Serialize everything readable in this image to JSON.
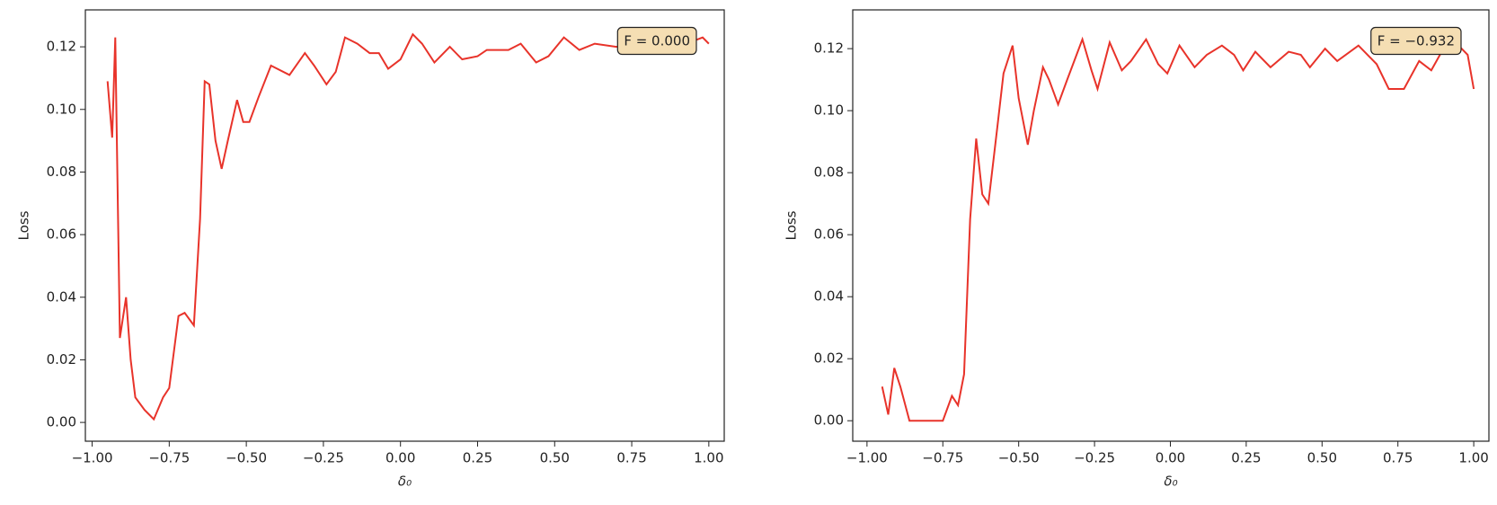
{
  "chart_data": [
    {
      "type": "line",
      "xlabel": "δ₀",
      "ylabel": "Loss",
      "annotation": "F = 0.000",
      "annotation_color": "#f5deb3",
      "xlim": [
        -1.022,
        1.05
      ],
      "ylim": [
        -0.006,
        0.1318
      ],
      "xticks": [
        {
          "value": -1,
          "label": "−1.00"
        },
        {
          "value": -0.75,
          "label": "−0.75"
        },
        {
          "value": -0.5,
          "label": "−0.50"
        },
        {
          "value": -0.25,
          "label": "−0.25"
        },
        {
          "value": 0,
          "label": "0.00"
        },
        {
          "value": 0.25,
          "label": "0.25"
        },
        {
          "value": 0.5,
          "label": "0.50"
        },
        {
          "value": 0.75,
          "label": "0.75"
        },
        {
          "value": 1,
          "label": "1.00"
        }
      ],
      "yticks": [
        {
          "value": 0,
          "label": "0.00"
        },
        {
          "value": 0.02,
          "label": "0.02"
        },
        {
          "value": 0.04,
          "label": "0.04"
        },
        {
          "value": 0.06,
          "label": "0.06"
        },
        {
          "value": 0.08,
          "label": "0.08"
        },
        {
          "value": 0.1,
          "label": "0.10"
        },
        {
          "value": 0.12,
          "label": "0.12"
        }
      ],
      "color": "#e8332a",
      "x": [
        -0.95,
        -0.935,
        -0.925,
        -0.91,
        -0.89,
        -0.875,
        -0.86,
        -0.83,
        -0.8,
        -0.77,
        -0.75,
        -0.72,
        -0.7,
        -0.67,
        -0.65,
        -0.635,
        -0.62,
        -0.6,
        -0.58,
        -0.56,
        -0.53,
        -0.51,
        -0.49,
        -0.46,
        -0.42,
        -0.36,
        -0.31,
        -0.28,
        -0.24,
        -0.21,
        -0.18,
        -0.14,
        -0.1,
        -0.07,
        -0.04,
        0.0,
        0.04,
        0.07,
        0.11,
        0.16,
        0.2,
        0.25,
        0.28,
        0.35,
        0.39,
        0.44,
        0.48,
        0.53,
        0.58,
        0.63,
        0.7,
        0.8,
        0.9,
        0.98,
        1.0
      ],
      "values": [
        0.109,
        0.091,
        0.123,
        0.027,
        0.04,
        0.02,
        0.008,
        0.004,
        0.001,
        0.008,
        0.011,
        0.034,
        0.035,
        0.031,
        0.065,
        0.109,
        0.108,
        0.09,
        0.081,
        0.09,
        0.103,
        0.096,
        0.096,
        0.104,
        0.114,
        0.111,
        0.118,
        0.114,
        0.108,
        0.112,
        0.123,
        0.121,
        0.118,
        0.118,
        0.113,
        0.116,
        0.124,
        0.121,
        0.115,
        0.12,
        0.116,
        0.117,
        0.119,
        0.119,
        0.121,
        0.115,
        0.117,
        0.123,
        0.119,
        0.121,
        0.12,
        0.121,
        0.12,
        0.123,
        0.121
      ]
    },
    {
      "type": "line",
      "xlabel": "δ₀",
      "ylabel": "Loss",
      "annotation": "F = −0.932",
      "annotation_color": "#f5deb3",
      "xlim": [
        -1.047,
        1.05
      ],
      "ylim": [
        -0.0066,
        0.1325
      ],
      "xticks": [
        {
          "value": -1,
          "label": "−1.00"
        },
        {
          "value": -0.75,
          "label": "−0.75"
        },
        {
          "value": -0.5,
          "label": "−0.50"
        },
        {
          "value": -0.25,
          "label": "−0.25"
        },
        {
          "value": 0,
          "label": "0.00"
        },
        {
          "value": 0.25,
          "label": "0.25"
        },
        {
          "value": 0.5,
          "label": "0.50"
        },
        {
          "value": 0.75,
          "label": "0.75"
        },
        {
          "value": 1,
          "label": "1.00"
        }
      ],
      "yticks": [
        {
          "value": 0,
          "label": "0.00"
        },
        {
          "value": 0.02,
          "label": "0.02"
        },
        {
          "value": 0.04,
          "label": "0.04"
        },
        {
          "value": 0.06,
          "label": "0.06"
        },
        {
          "value": 0.08,
          "label": "0.08"
        },
        {
          "value": 0.1,
          "label": "0.10"
        },
        {
          "value": 0.12,
          "label": "0.12"
        }
      ],
      "color": "#e8332a",
      "x": [
        -0.95,
        -0.93,
        -0.91,
        -0.89,
        -0.86,
        -0.8,
        -0.75,
        -0.72,
        -0.7,
        -0.68,
        -0.66,
        -0.64,
        -0.62,
        -0.6,
        -0.57,
        -0.55,
        -0.52,
        -0.5,
        -0.47,
        -0.45,
        -0.42,
        -0.4,
        -0.37,
        -0.34,
        -0.29,
        -0.26,
        -0.24,
        -0.2,
        -0.16,
        -0.13,
        -0.08,
        -0.04,
        -0.01,
        0.03,
        0.08,
        0.12,
        0.17,
        0.21,
        0.24,
        0.28,
        0.33,
        0.39,
        0.43,
        0.46,
        0.51,
        0.55,
        0.62,
        0.68,
        0.72,
        0.77,
        0.82,
        0.86,
        0.9,
        0.95,
        0.98,
        1.0
      ],
      "values": [
        0.011,
        0.002,
        0.017,
        0.011,
        0.0,
        0.0,
        0.0,
        0.008,
        0.005,
        0.015,
        0.065,
        0.091,
        0.073,
        0.07,
        0.095,
        0.112,
        0.121,
        0.104,
        0.089,
        0.1,
        0.114,
        0.11,
        0.102,
        0.11,
        0.123,
        0.113,
        0.107,
        0.122,
        0.113,
        0.116,
        0.123,
        0.115,
        0.112,
        0.121,
        0.114,
        0.118,
        0.121,
        0.118,
        0.113,
        0.119,
        0.114,
        0.119,
        0.118,
        0.114,
        0.12,
        0.116,
        0.121,
        0.115,
        0.107,
        0.107,
        0.116,
        0.113,
        0.12,
        0.121,
        0.118,
        0.107
      ]
    }
  ]
}
